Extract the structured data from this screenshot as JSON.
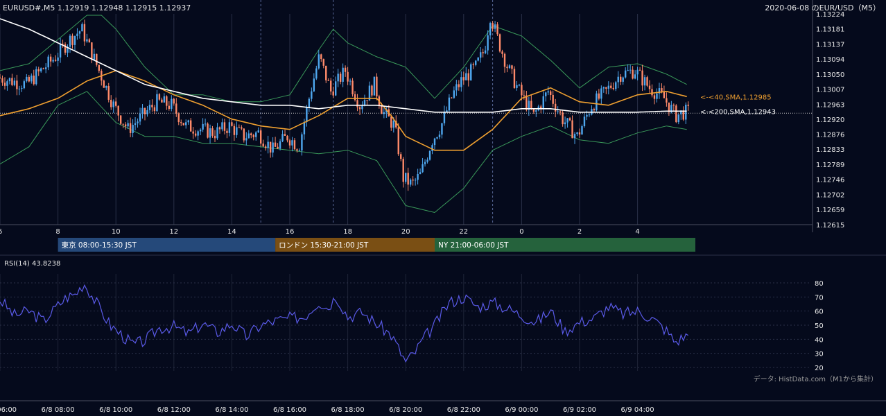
{
  "header": {
    "symbol_info": "EURUSD#,M5 1.12919 1.12948 1.12915 1.12937",
    "date_title": "2020-06-08 のEUR/USD（M5）"
  },
  "colors": {
    "background": "#050a1c",
    "up_candle": "#4fa8f0",
    "down_candle": "#ff8a6a",
    "bollinger": "#3a9a5a",
    "sma40": "#f0a030",
    "sma200": "#ffffff",
    "rsi": "#5a5ae8",
    "session_tokyo": "#25497a",
    "session_london": "#7a4f14",
    "session_ny": "#25623c"
  },
  "sessions": [
    {
      "label": "東京 08:00-15:30 JST"
    },
    {
      "label": "ロンドン 15:30-21:00 JST"
    },
    {
      "label": "NY 21:00-06:00 JST"
    }
  ],
  "rsi_panel": {
    "title": "RSI(14) 43.8238",
    "ticks": [
      "80",
      "70",
      "60",
      "50",
      "40",
      "30",
      "20"
    ]
  },
  "source_note": "データ: HistData.com（M1から集計）",
  "chart_data": {
    "type": "candlestick",
    "timeframe": "M5",
    "price_axis": {
      "ylim": [
        1.12615,
        1.13224
      ],
      "ticks": [
        "1.13224",
        "1.13181",
        "1.13137",
        "1.13094",
        "1.13050",
        "1.13007",
        "1.12963",
        "1.12920",
        "1.12876",
        "1.12833",
        "1.12789",
        "1.12746",
        "1.12702",
        "1.12659",
        "1.12615"
      ]
    },
    "hour_axis": [
      "6",
      "8",
      "10",
      "12",
      "14",
      "16",
      "18",
      "20",
      "22",
      "0",
      "2",
      "4"
    ],
    "date_axis": [
      "6/8 06:00",
      "6/8 08:00",
      "6/8 10:00",
      "6/8 12:00",
      "6/8 14:00",
      "6/8 16:00",
      "6/8 18:00",
      "6/8 20:00",
      "6/8 22:00",
      "6/9 00:00",
      "6/9 02:00",
      "6/9 04:00"
    ],
    "series_labels": [
      {
        "name": "<-<40,SMA,1.12985",
        "value": 1.12985
      },
      {
        "name": "<-<200,SMA,1.12943",
        "value": 1.12943
      }
    ],
    "last_price": 1.12937,
    "close_path_hours": [
      6.0,
      7.0,
      7.5,
      8.0,
      8.5,
      8.9,
      9.3,
      9.6,
      10.0,
      10.5,
      11.0,
      11.5,
      12.0,
      12.5,
      13.0,
      13.5,
      14.0,
      14.5,
      15.0,
      15.5,
      16.0,
      16.4,
      16.8,
      17.1,
      17.5,
      18.0,
      18.5,
      19.0,
      19.3,
      19.7,
      20.0,
      20.3,
      20.6,
      21.0,
      21.3,
      21.7,
      22.0,
      22.5,
      22.8,
      23.0,
      23.3,
      23.6,
      24.0,
      24.5,
      25.0,
      25.5,
      26.0,
      26.5,
      27.0,
      27.5,
      28.0,
      28.5,
      29.0,
      29.4,
      29.7
    ],
    "close_path_prices": [
      1.1304,
      1.1302,
      1.1306,
      1.131,
      1.1315,
      1.1318,
      1.131,
      1.1304,
      1.1296,
      1.1289,
      1.1293,
      1.1297,
      1.1296,
      1.129,
      1.1289,
      1.1288,
      1.129,
      1.1287,
      1.1288,
      1.1283,
      1.1287,
      1.1284,
      1.13,
      1.131,
      1.13,
      1.1306,
      1.1296,
      1.1302,
      1.1294,
      1.129,
      1.1275,
      1.1273,
      1.1276,
      1.1286,
      1.129,
      1.1299,
      1.1303,
      1.1307,
      1.1312,
      1.1322,
      1.1314,
      1.1307,
      1.13,
      1.1293,
      1.13,
      1.1292,
      1.1287,
      1.1296,
      1.13,
      1.1305,
      1.1306,
      1.1301,
      1.1298,
      1.1293,
      1.1294
    ],
    "sma40_hours": [
      6.0,
      7.0,
      8.0,
      9.0,
      10.0,
      11.0,
      12.0,
      13.0,
      14.0,
      15.0,
      16.0,
      17.0,
      18.0,
      19.0,
      19.5,
      20.0,
      20.5,
      21.0,
      21.5,
      22.0,
      22.5,
      23.0,
      24.0,
      25.0,
      26.0,
      27.0,
      28.0,
      29.0,
      29.7
    ],
    "sma40_prices": [
      1.1293,
      1.1295,
      1.1298,
      1.1303,
      1.1306,
      1.1303,
      1.1299,
      1.1296,
      1.1292,
      1.129,
      1.1289,
      1.1293,
      1.1298,
      1.1298,
      1.1293,
      1.1287,
      1.1285,
      1.1283,
      1.1283,
      1.1283,
      1.1286,
      1.1289,
      1.1298,
      1.1301,
      1.1297,
      1.1296,
      1.1299,
      1.13,
      1.12985
    ],
    "sma200_hours": [
      6.0,
      7.0,
      8.0,
      9.0,
      10.0,
      11.0,
      12.0,
      13.0,
      14.0,
      15.0,
      16.0,
      17.0,
      18.0,
      19.0,
      20.0,
      21.0,
      22.0,
      23.0,
      24.0,
      25.0,
      26.0,
      27.0,
      28.0,
      29.0,
      29.7
    ],
    "sma200_prices": [
      1.1321,
      1.1318,
      1.1314,
      1.131,
      1.1306,
      1.1302,
      1.13,
      1.1298,
      1.1297,
      1.1296,
      1.1296,
      1.1295,
      1.1296,
      1.1296,
      1.1295,
      1.1294,
      1.1294,
      1.1294,
      1.1295,
      1.1295,
      1.1294,
      1.1294,
      1.1294,
      1.12943,
      1.12943
    ],
    "bb_upper_hours": [
      6.0,
      7.0,
      8.0,
      9.0,
      9.5,
      10.0,
      11.0,
      12.0,
      13.0,
      14.0,
      15.0,
      16.0,
      17.0,
      17.5,
      18.0,
      19.0,
      20.0,
      21.0,
      22.0,
      23.0,
      24.0,
      25.0,
      26.0,
      27.0,
      28.0,
      29.0,
      29.7
    ],
    "bb_upper_prices": [
      1.1306,
      1.1308,
      1.1315,
      1.1322,
      1.1322,
      1.1318,
      1.1307,
      1.1299,
      1.1299,
      1.1297,
      1.1297,
      1.1299,
      1.1312,
      1.1318,
      1.1314,
      1.131,
      1.1307,
      1.1298,
      1.1307,
      1.1319,
      1.1316,
      1.1309,
      1.1301,
      1.1307,
      1.1308,
      1.1305,
      1.1302
    ],
    "bb_lower_hours": [
      6.0,
      7.0,
      8.0,
      9.0,
      10.0,
      11.0,
      12.0,
      13.0,
      14.0,
      15.0,
      16.0,
      17.0,
      18.0,
      19.0,
      20.0,
      21.0,
      22.0,
      23.0,
      24.0,
      25.0,
      26.0,
      27.0,
      28.0,
      29.0,
      29.7
    ],
    "bb_lower_prices": [
      1.1279,
      1.1284,
      1.1296,
      1.13,
      1.1291,
      1.1287,
      1.1287,
      1.1285,
      1.1285,
      1.1284,
      1.1283,
      1.1282,
      1.1283,
      1.128,
      1.1267,
      1.1265,
      1.1272,
      1.1283,
      1.1287,
      1.129,
      1.1286,
      1.1285,
      1.1288,
      1.129,
      1.1289
    ],
    "session_ranges_hours": [
      [
        8.0,
        15.5
      ],
      [
        15.5,
        21.0
      ],
      [
        21.0,
        30.0
      ]
    ],
    "session_separators_hours": [
      15.0,
      17.5,
      23.0
    ],
    "rsi": {
      "period": 14,
      "last": 43.8238,
      "ylim": [
        20,
        80
      ],
      "hours": [
        6.0,
        6.5,
        7.0,
        7.5,
        8.0,
        8.3,
        8.6,
        8.9,
        9.2,
        9.5,
        9.8,
        10.2,
        10.6,
        11.0,
        11.5,
        12.0,
        12.5,
        13.0,
        13.5,
        14.0,
        14.5,
        15.0,
        15.5,
        16.0,
        16.5,
        17.0,
        17.3,
        17.6,
        18.0,
        18.5,
        19.0,
        19.5,
        20.0,
        20.3,
        20.6,
        21.0,
        21.5,
        22.0,
        22.5,
        23.0,
        23.5,
        24.0,
        24.5,
        25.0,
        25.5,
        26.0,
        26.5,
        27.0,
        27.5,
        28.0,
        28.5,
        29.0,
        29.3,
        29.7
      ],
      "values": [
        68,
        57,
        60,
        53,
        64,
        70,
        72,
        80,
        70,
        60,
        50,
        43,
        36,
        39,
        48,
        49,
        44,
        51,
        45,
        51,
        42,
        50,
        53,
        55,
        56,
        67,
        62,
        71,
        56,
        59,
        51,
        43,
        24,
        30,
        40,
        50,
        66,
        70,
        63,
        66,
        62,
        57,
        52,
        60,
        46,
        52,
        55,
        63,
        58,
        60,
        55,
        46,
        38,
        43
      ]
    }
  }
}
